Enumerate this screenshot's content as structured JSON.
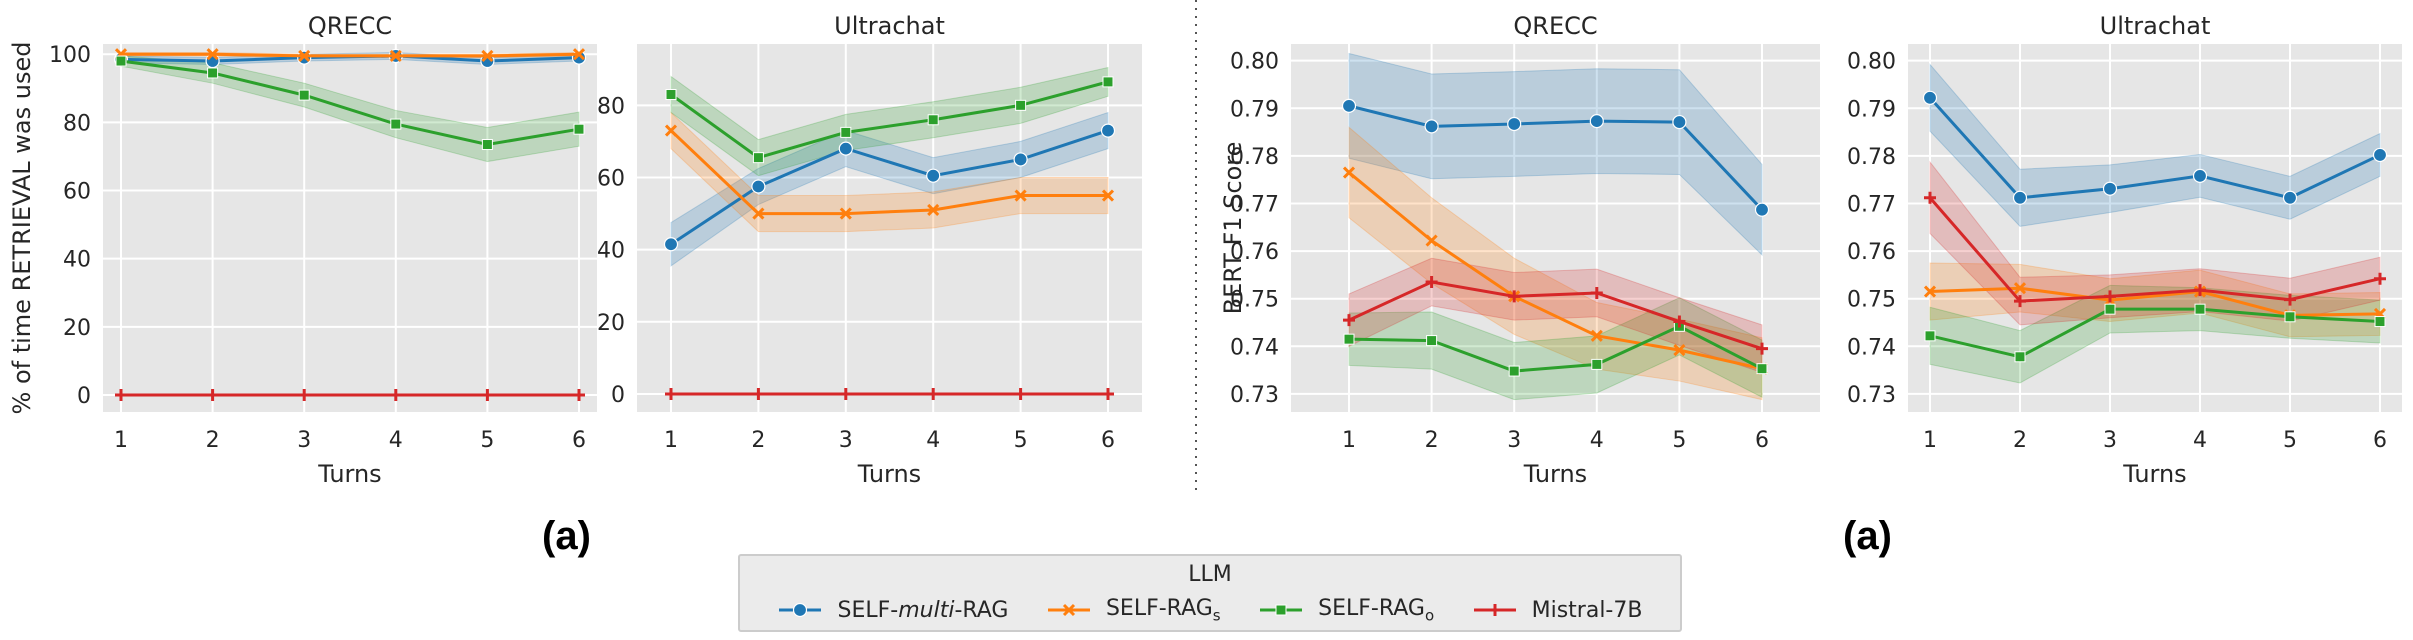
{
  "legend": {
    "title": "LLM",
    "items": [
      {
        "name": "SELF-multi-RAG",
        "prefix": "SELF-",
        "italic": "multi",
        "suffix": "-RAG",
        "color": "#1f77b4",
        "marker": "circle"
      },
      {
        "name": "SELF-RAGs",
        "prefix": "SELF-RAG",
        "sub": "s",
        "color": "#ff7f0e",
        "marker": "x"
      },
      {
        "name": "SELF-RAGo",
        "prefix": "SELF-RAG",
        "sub": "o",
        "color": "#2ca02c",
        "marker": "square"
      },
      {
        "name": "Mistral-7B",
        "prefix": "Mistral-7B",
        "color": "#d62728",
        "marker": "plus"
      }
    ]
  },
  "subfigure_labels": {
    "left": "(a)",
    "right": "(a)"
  },
  "chart_data": [
    {
      "type": "line",
      "title": "QRECC",
      "xlabel": "Turns",
      "ylabel": "% of time RETRIEVAL was used",
      "x": [
        1,
        2,
        3,
        4,
        5,
        6
      ],
      "ylim": [
        -5,
        103
      ],
      "yticks": [
        0,
        20,
        40,
        60,
        80,
        100
      ],
      "ytick_labels": [
        "0",
        "20",
        "40",
        "60",
        "80",
        "100"
      ],
      "series": [
        {
          "name": "SELF-multi-RAG",
          "values": [
            98.5,
            98,
            99,
            99.5,
            98,
            99
          ],
          "band": [
            1,
            1,
            1,
            1,
            1,
            1
          ]
        },
        {
          "name": "SELF-RAGs",
          "values": [
            100,
            100,
            99.5,
            99.5,
            99.5,
            100
          ],
          "band": [
            0.5,
            0.5,
            0.5,
            0.5,
            0.5,
            0.5
          ]
        },
        {
          "name": "SELF-RAGo",
          "values": [
            98,
            94.5,
            88,
            79.5,
            73.5,
            78
          ],
          "band": [
            1.5,
            3,
            3.5,
            4,
            5,
            5
          ]
        },
        {
          "name": "Mistral-7B",
          "values": [
            0,
            0,
            0,
            0,
            0,
            0
          ],
          "band": [
            0,
            0,
            0,
            0,
            0,
            0
          ]
        }
      ]
    },
    {
      "type": "line",
      "title": "Ultrachat",
      "xlabel": "Turns",
      "ylabel": "",
      "x": [
        1,
        2,
        3,
        4,
        5,
        6
      ],
      "ylim": [
        -5,
        97
      ],
      "yticks": [
        0,
        20,
        40,
        60,
        80
      ],
      "ytick_labels": [
        "0",
        "20",
        "40",
        "60",
        "80"
      ],
      "series": [
        {
          "name": "SELF-multi-RAG",
          "values": [
            41.5,
            57.5,
            68,
            60.5,
            65,
            73
          ],
          "band": [
            6,
            5,
            5,
            5,
            5,
            5
          ]
        },
        {
          "name": "SELF-RAGs",
          "values": [
            73,
            50,
            50,
            51,
            55,
            55
          ],
          "band": [
            5,
            5,
            5,
            5,
            5,
            5
          ]
        },
        {
          "name": "SELF-RAGo",
          "values": [
            83,
            65.5,
            72.5,
            76,
            80,
            86.5
          ],
          "band": [
            5,
            5,
            5,
            5,
            5,
            4
          ]
        },
        {
          "name": "Mistral-7B",
          "values": [
            0,
            0,
            0,
            0,
            0,
            0
          ],
          "band": [
            0,
            0,
            0,
            0,
            0,
            0
          ]
        }
      ]
    },
    {
      "type": "line",
      "title": "QRECC",
      "xlabel": "Turns",
      "ylabel": "BERT F1 Score",
      "x": [
        1,
        2,
        3,
        4,
        5,
        6
      ],
      "ylim": [
        0.7262,
        0.8035
      ],
      "yticks": [
        0.73,
        0.74,
        0.75,
        0.76,
        0.77,
        0.78,
        0.79,
        0.8
      ],
      "ytick_labels": [
        "0.73",
        "0.74",
        "0.75",
        "0.76",
        "0.77",
        "0.78",
        "0.79",
        "0.80"
      ],
      "series": [
        {
          "name": "SELF-multi-RAG",
          "values": [
            0.7905,
            0.7862,
            0.7867,
            0.7873,
            0.7871,
            0.7687
          ],
          "band": [
            0.011,
            0.011,
            0.011,
            0.011,
            0.011,
            0.0095
          ]
        },
        {
          "name": "SELF-RAGs",
          "values": [
            0.7765,
            0.7622,
            0.7505,
            0.7422,
            0.7392,
            0.7353
          ],
          "band": [
            0.0095,
            0.009,
            0.008,
            0.007,
            0.0065,
            0.0065
          ]
        },
        {
          "name": "SELF-RAGo",
          "values": [
            0.7415,
            0.7412,
            0.7348,
            0.7362,
            0.7442,
            0.7353
          ],
          "band": [
            0.0055,
            0.006,
            0.006,
            0.006,
            0.006,
            0.006
          ]
        },
        {
          "name": "Mistral-7B",
          "values": [
            0.7455,
            0.7535,
            0.7505,
            0.7512,
            0.7452,
            0.7395
          ],
          "band": [
            0.0055,
            0.005,
            0.005,
            0.005,
            0.005,
            0.005
          ]
        }
      ]
    },
    {
      "type": "line",
      "title": "Ultrachat",
      "xlabel": "Turns",
      "ylabel": "",
      "x": [
        1,
        2,
        3,
        4,
        5,
        6
      ],
      "ylim": [
        0.7262,
        0.8035
      ],
      "yticks": [
        0.73,
        0.74,
        0.75,
        0.76,
        0.77,
        0.78,
        0.79,
        0.8
      ],
      "ytick_labels": [
        "0.73",
        "0.74",
        "0.75",
        "0.76",
        "0.77",
        "0.78",
        "0.79",
        "0.80"
      ],
      "series": [
        {
          "name": "SELF-multi-RAG",
          "values": [
            0.7922,
            0.7712,
            0.7731,
            0.7758,
            0.7712,
            0.7802
          ],
          "band": [
            0.007,
            0.006,
            0.005,
            0.0045,
            0.0045,
            0.0045
          ]
        },
        {
          "name": "SELF-RAGs",
          "values": [
            0.7515,
            0.7522,
            0.7497,
            0.7515,
            0.7465,
            0.7468
          ],
          "band": [
            0.006,
            0.005,
            0.0045,
            0.0045,
            0.0045,
            0.0045
          ]
        },
        {
          "name": "SELF-RAGo",
          "values": [
            0.7422,
            0.7378,
            0.7478,
            0.7478,
            0.7462,
            0.7452
          ],
          "band": [
            0.006,
            0.0055,
            0.005,
            0.0045,
            0.0045,
            0.0045
          ]
        },
        {
          "name": "Mistral-7B",
          "values": [
            0.7712,
            0.7495,
            0.7505,
            0.7518,
            0.7498,
            0.7542
          ],
          "band": [
            0.0075,
            0.005,
            0.0045,
            0.0045,
            0.0045,
            0.0045
          ]
        }
      ]
    }
  ]
}
